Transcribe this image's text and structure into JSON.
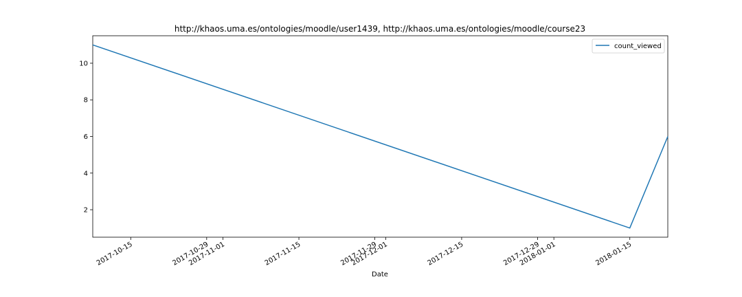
{
  "chart_data": {
    "type": "line",
    "title": "http://khaos.uma.es/ontologies/moodle/user1439, http://khaos.uma.es/ontologies/moodle/course23",
    "xlabel": "Date",
    "ylabel": "",
    "x": [
      "2017-10-08",
      "2018-01-15",
      "2018-01-22"
    ],
    "series": [
      {
        "name": "count_viewed",
        "values": [
          11,
          1,
          6
        ],
        "color": "#1f77b4"
      }
    ],
    "xlim": [
      "2017-10-08",
      "2018-01-22"
    ],
    "ylim": [
      0.5,
      11.5
    ],
    "x_ticks": [
      "2017-10-15",
      "2017-10-29",
      "2017-11-01",
      "2017-11-15",
      "2017-11-29",
      "2017-12-01",
      "2017-12-15",
      "2017-12-29",
      "2018-01-01",
      "2018-01-15"
    ],
    "y_ticks": [
      2,
      4,
      6,
      8,
      10
    ],
    "grid": false,
    "legend_position": "top-right"
  }
}
